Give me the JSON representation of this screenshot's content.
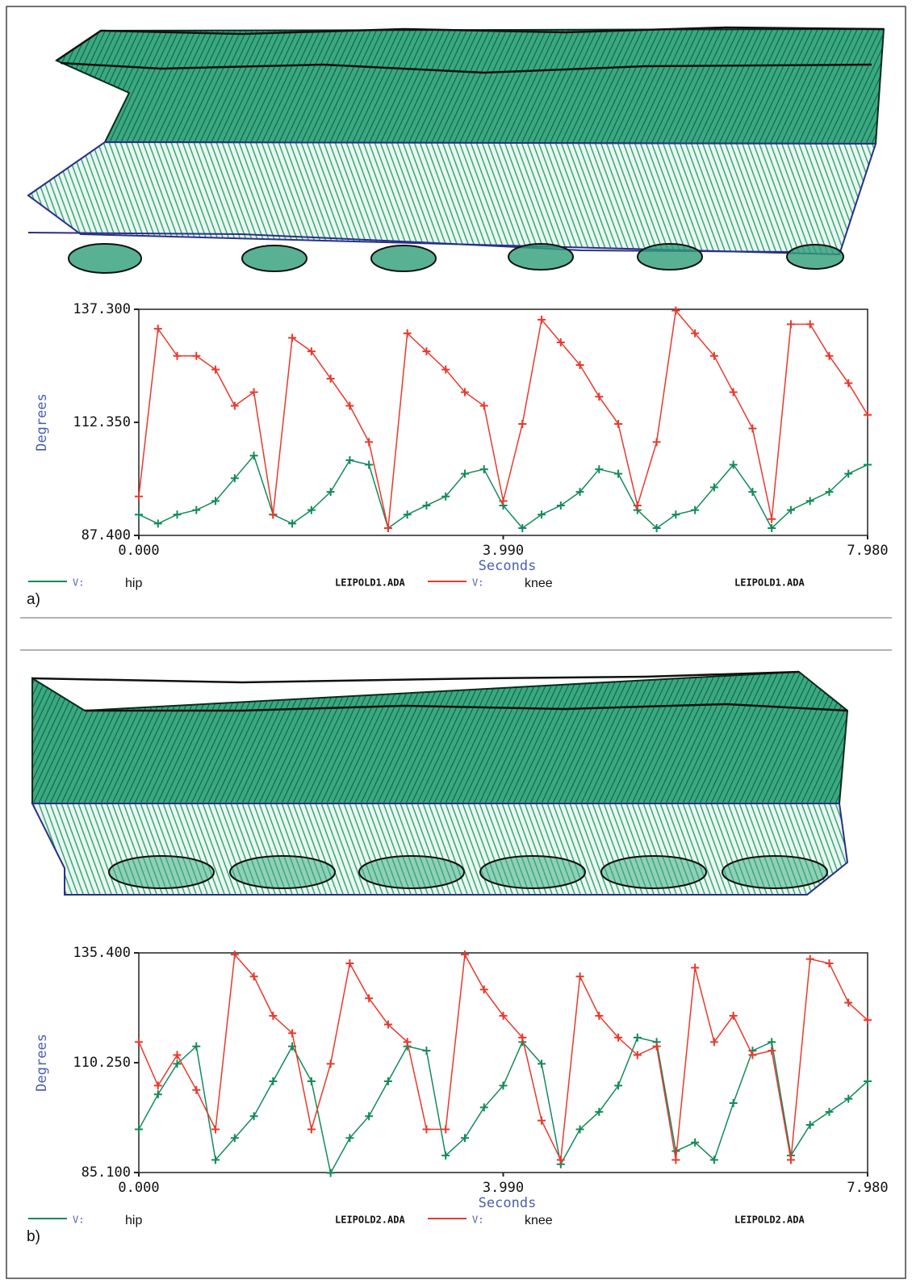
{
  "chart_data": [
    {
      "type": "line",
      "panel": "a)",
      "x_label": "Seconds",
      "y_label": "Degrees",
      "xlim": [
        0,
        7.98
      ],
      "ylim": [
        87.4,
        137.3
      ],
      "xticks": [
        {
          "value": 0,
          "label": "0.000"
        },
        {
          "value": 3.99,
          "label": "3.990"
        },
        {
          "value": 7.98,
          "label": "7.980"
        }
      ],
      "yticks": [
        {
          "value": 87.4,
          "label": "87.400"
        },
        {
          "value": 112.35,
          "label": "112.350"
        },
        {
          "value": 137.3,
          "label": "137.300"
        }
      ],
      "x": [
        0,
        0.21,
        0.42,
        0.63,
        0.84,
        1.05,
        1.26,
        1.47,
        1.68,
        1.89,
        2.1,
        2.31,
        2.52,
        2.73,
        2.94,
        3.15,
        3.36,
        3.57,
        3.78,
        3.99,
        4.2,
        4.41,
        4.62,
        4.83,
        5.04,
        5.25,
        5.46,
        5.67,
        5.88,
        6.09,
        6.3,
        6.51,
        6.72,
        6.93,
        7.14,
        7.35,
        7.56,
        7.77,
        7.98
      ],
      "series": [
        {
          "name": "hip",
          "legend_prefix": "V:",
          "source": "LEIPOLD1.ADA",
          "color": "#138a5a",
          "values": [
            92,
            90,
            92,
            93,
            95,
            100,
            105,
            92,
            90,
            93,
            97,
            104,
            103,
            89,
            92,
            94,
            96,
            101,
            102,
            94,
            89,
            92,
            94,
            97,
            102,
            101,
            93,
            89,
            92,
            93,
            98,
            103,
            97,
            89,
            93,
            95,
            97,
            101,
            103
          ]
        },
        {
          "name": "knee",
          "legend_prefix": "V:",
          "source": "LEIPOLD1.ADA",
          "color": "#e8392c",
          "values": [
            96,
            133,
            127,
            127,
            124,
            116,
            119,
            92,
            131,
            128,
            122,
            116,
            108,
            89,
            132,
            128,
            124,
            119,
            116,
            95,
            112,
            135,
            130,
            125,
            118,
            112,
            94,
            108,
            137,
            132,
            127,
            119,
            111,
            91,
            134,
            134,
            127,
            121,
            114
          ]
        }
      ]
    },
    {
      "type": "line",
      "panel": "b)",
      "x_label": "Seconds",
      "y_label": "Degrees",
      "xlim": [
        0,
        7.98
      ],
      "ylim": [
        85.1,
        135.4
      ],
      "xticks": [
        {
          "value": 0,
          "label": "0.000"
        },
        {
          "value": 3.99,
          "label": "3.990"
        },
        {
          "value": 7.98,
          "label": "7.980"
        }
      ],
      "yticks": [
        {
          "value": 85.1,
          "label": "85.100"
        },
        {
          "value": 110.25,
          "label": "110.250"
        },
        {
          "value": 135.4,
          "label": "135.400"
        }
      ],
      "x": [
        0,
        0.21,
        0.42,
        0.63,
        0.84,
        1.05,
        1.26,
        1.47,
        1.68,
        1.89,
        2.1,
        2.31,
        2.52,
        2.73,
        2.94,
        3.15,
        3.36,
        3.57,
        3.78,
        3.99,
        4.2,
        4.41,
        4.62,
        4.83,
        5.04,
        5.25,
        5.46,
        5.67,
        5.88,
        6.09,
        6.3,
        6.51,
        6.72,
        6.93,
        7.14,
        7.35,
        7.56,
        7.77,
        7.98
      ],
      "series": [
        {
          "name": "hip",
          "legend_prefix": "V:",
          "source": "LEIPOLD2.ADA",
          "color": "#138a5a",
          "values": [
            95,
            103,
            110,
            114,
            88,
            93,
            98,
            106,
            114,
            106,
            85,
            93,
            98,
            106,
            114,
            113,
            89,
            93,
            100,
            105,
            115,
            110,
            87,
            95,
            99,
            105,
            116,
            115,
            90,
            92,
            88,
            101,
            113,
            115,
            89,
            96,
            99,
            102,
            106
          ]
        },
        {
          "name": "knee",
          "legend_prefix": "V:",
          "source": "LEIPOLD2.ADA",
          "color": "#e8392c",
          "values": [
            115,
            105,
            112,
            104,
            95,
            135,
            130,
            121,
            117,
            95,
            110,
            133,
            125,
            119,
            115,
            95,
            95,
            135,
            127,
            121,
            116,
            97,
            88,
            130,
            121,
            116,
            112,
            114,
            88,
            132,
            115,
            121,
            112,
            113,
            88,
            134,
            133,
            124,
            120
          ]
        }
      ]
    }
  ]
}
